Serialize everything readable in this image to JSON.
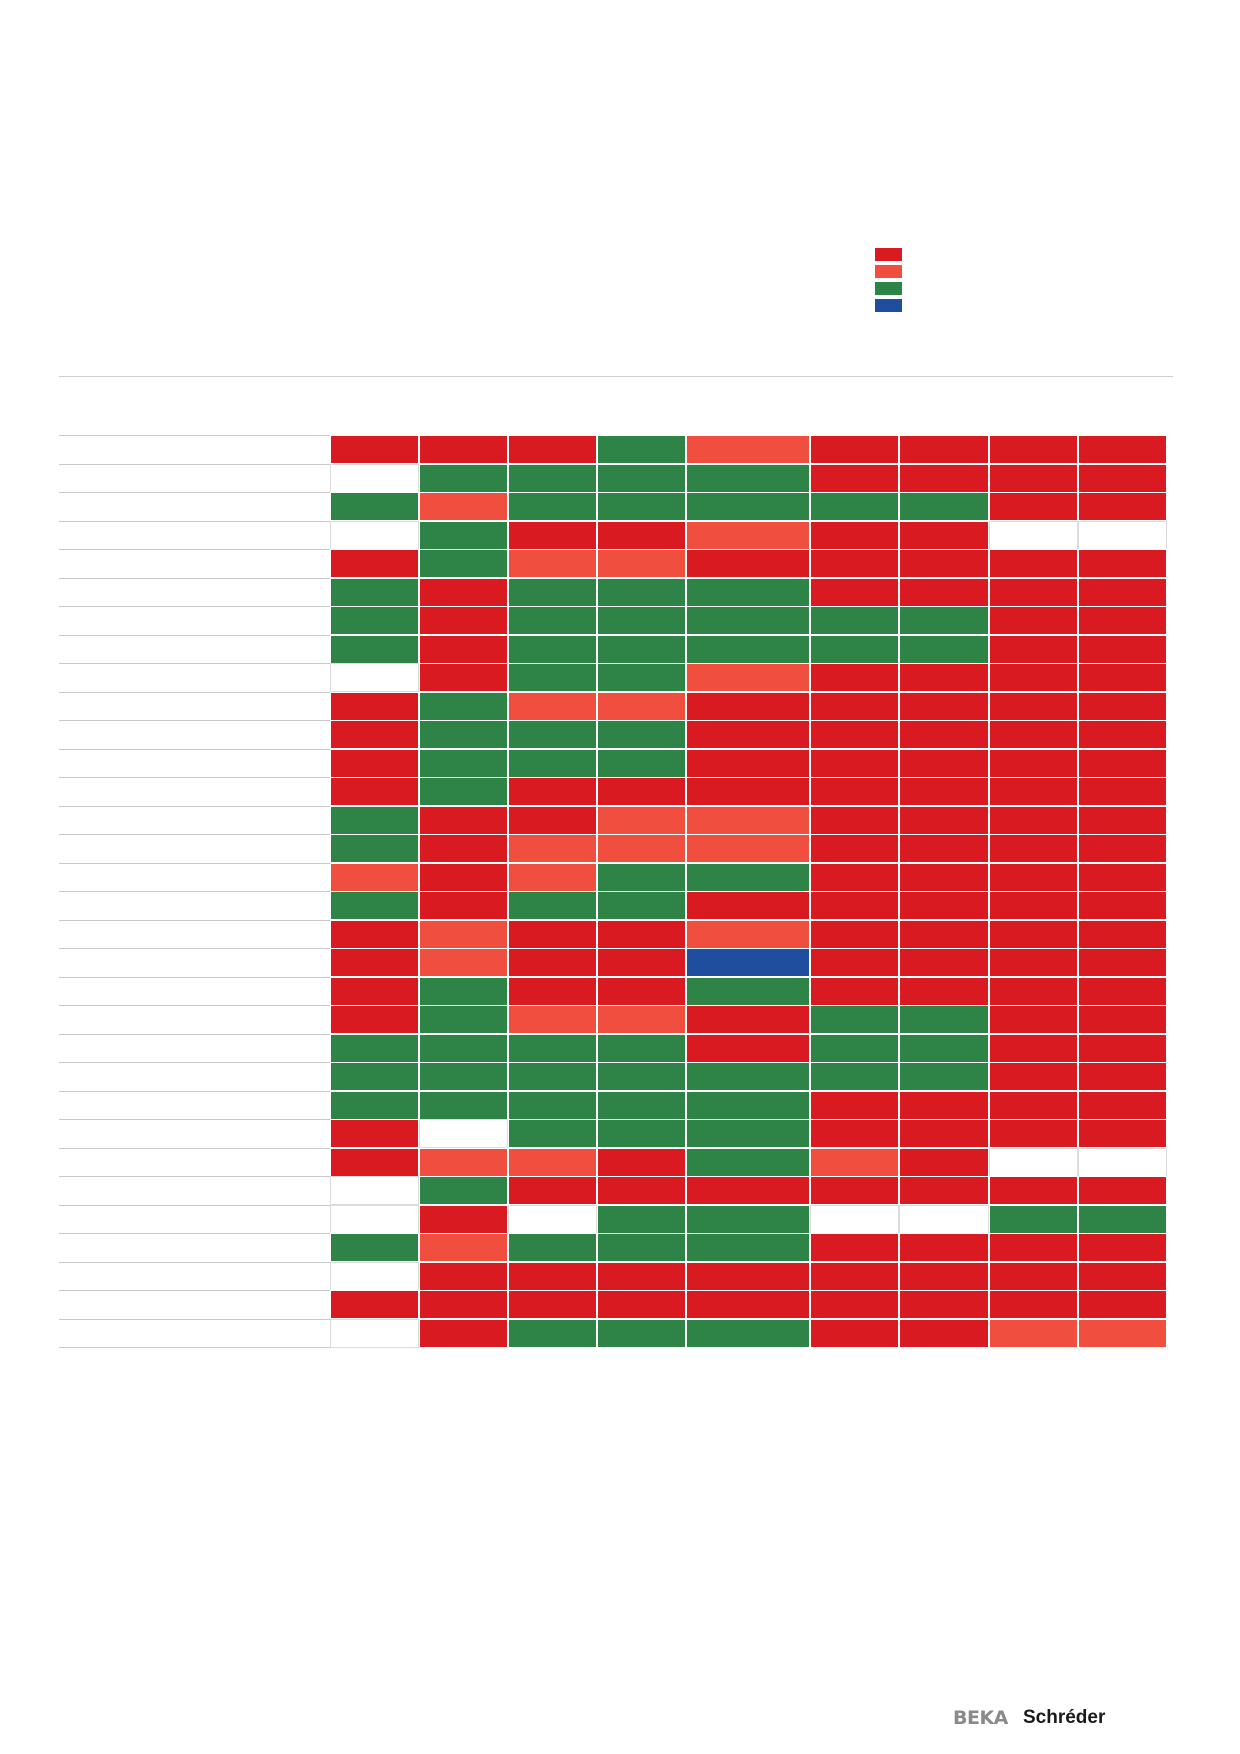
{
  "colors": {
    "R": "#d91a21",
    "O": "#f04e3e",
    "G": "#2e8346",
    "B": "#1f4e9e",
    "W": "#ffffff"
  },
  "legend": [
    {
      "color": "R",
      "label": ""
    },
    {
      "color": "O",
      "label": ""
    },
    {
      "color": "G",
      "label": ""
    },
    {
      "color": "B",
      "label": ""
    }
  ],
  "rows": [
    [
      "R",
      "R",
      "R",
      "G",
      "O",
      "R",
      "R",
      "R",
      "R"
    ],
    [
      "W",
      "G",
      "G",
      "G",
      "G",
      "R",
      "R",
      "R",
      "R"
    ],
    [
      "G",
      "O",
      "G",
      "G",
      "G",
      "G",
      "G",
      "R",
      "R"
    ],
    [
      "W",
      "G",
      "R",
      "R",
      "O",
      "R",
      "R",
      "W",
      "W"
    ],
    [
      "R",
      "G",
      "O",
      "O",
      "R",
      "R",
      "R",
      "R",
      "R"
    ],
    [
      "G",
      "R",
      "G",
      "G",
      "G",
      "R",
      "R",
      "R",
      "R"
    ],
    [
      "G",
      "R",
      "G",
      "G",
      "G",
      "G",
      "G",
      "R",
      "R"
    ],
    [
      "G",
      "R",
      "G",
      "G",
      "G",
      "G",
      "G",
      "R",
      "R"
    ],
    [
      "W",
      "R",
      "G",
      "G",
      "O",
      "R",
      "R",
      "R",
      "R"
    ],
    [
      "R",
      "G",
      "O",
      "O",
      "R",
      "R",
      "R",
      "R",
      "R"
    ],
    [
      "R",
      "G",
      "G",
      "G",
      "R",
      "R",
      "R",
      "R",
      "R"
    ],
    [
      "R",
      "G",
      "G",
      "G",
      "R",
      "R",
      "R",
      "R",
      "R"
    ],
    [
      "R",
      "G",
      "R",
      "R",
      "R",
      "R",
      "R",
      "R",
      "R"
    ],
    [
      "G",
      "R",
      "R",
      "O",
      "O",
      "R",
      "R",
      "R",
      "R"
    ],
    [
      "G",
      "R",
      "O",
      "O",
      "O",
      "R",
      "R",
      "R",
      "R"
    ],
    [
      "O",
      "R",
      "O",
      "G",
      "G",
      "R",
      "R",
      "R",
      "R"
    ],
    [
      "G",
      "R",
      "G",
      "G",
      "R",
      "R",
      "R",
      "R",
      "R"
    ],
    [
      "R",
      "O",
      "R",
      "R",
      "O",
      "R",
      "R",
      "R",
      "R"
    ],
    [
      "R",
      "O",
      "R",
      "R",
      "B",
      "R",
      "R",
      "R",
      "R"
    ],
    [
      "R",
      "G",
      "R",
      "R",
      "G",
      "R",
      "R",
      "R",
      "R"
    ],
    [
      "R",
      "G",
      "O",
      "O",
      "R",
      "G",
      "G",
      "R",
      "R"
    ],
    [
      "G",
      "G",
      "G",
      "G",
      "R",
      "G",
      "G",
      "R",
      "R"
    ],
    [
      "G",
      "G",
      "G",
      "G",
      "G",
      "G",
      "G",
      "R",
      "R"
    ],
    [
      "G",
      "G",
      "G",
      "G",
      "G",
      "R",
      "R",
      "R",
      "R"
    ],
    [
      "R",
      "W",
      "G",
      "G",
      "G",
      "R",
      "R",
      "R",
      "R"
    ],
    [
      "R",
      "O",
      "O",
      "R",
      "G",
      "O",
      "R",
      "W",
      "W"
    ],
    [
      "W",
      "G",
      "R",
      "R",
      "R",
      "R",
      "R",
      "R",
      "R"
    ],
    [
      "W",
      "R",
      "W",
      "G",
      "G",
      "W",
      "W",
      "G",
      "G"
    ],
    [
      "G",
      "O",
      "G",
      "G",
      "G",
      "R",
      "R",
      "R",
      "R"
    ],
    [
      "W",
      "R",
      "R",
      "R",
      "R",
      "R",
      "R",
      "R",
      "R"
    ],
    [
      "R",
      "R",
      "R",
      "R",
      "R",
      "R",
      "R",
      "R",
      "R"
    ],
    [
      "W",
      "R",
      "G",
      "G",
      "G",
      "R",
      "R",
      "O",
      "O"
    ]
  ],
  "logo": {
    "beka": "BEKA",
    "schreder": "Schréder"
  }
}
